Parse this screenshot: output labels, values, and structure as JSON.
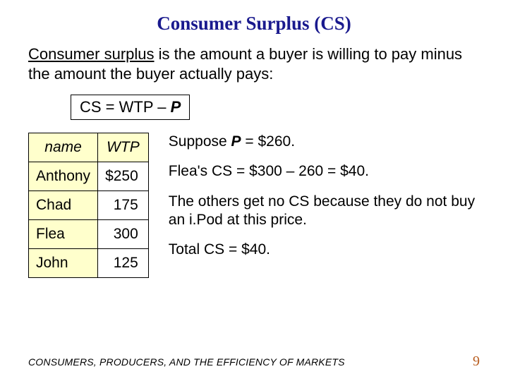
{
  "title": "Consumer Surplus (CS)",
  "definition": {
    "term": "Consumer surplus",
    "rest": " is the amount a buyer is willing to pay minus the amount the buyer actually pays:"
  },
  "formula": {
    "lhs": "CS",
    "eq": "  =  ",
    "mid": "WTP",
    "minus": "  –  ",
    "rhs": "P"
  },
  "table": {
    "headers": {
      "name": "name",
      "wtp": "WTP"
    },
    "rows": [
      {
        "name": "Anthony",
        "wtp": "$250"
      },
      {
        "name": "Chad",
        "wtp": "175"
      },
      {
        "name": "Flea",
        "wtp": "300"
      },
      {
        "name": "John",
        "wtp": "125"
      }
    ],
    "header_bg": "#ffffcc",
    "border_color": "#000000"
  },
  "explain": {
    "line1_pre": "Suppose ",
    "line1_var": "P",
    "line1_post": " = $260.",
    "line2": "Flea's CS = $300 – 260 = $40.",
    "line3": "The others get no CS because they do not buy an i.Pod at this price.",
    "line4": "Total CS = $40."
  },
  "footer": {
    "caption": "CONSUMERS, PRODUCERS, AND THE EFFICIENCY OF MARKETS",
    "page": "9"
  },
  "colors": {
    "title": "#1a1a8e",
    "pagenum": "#b85c1e",
    "highlight_bg": "#ffffcc",
    "background": "#ffffff"
  }
}
